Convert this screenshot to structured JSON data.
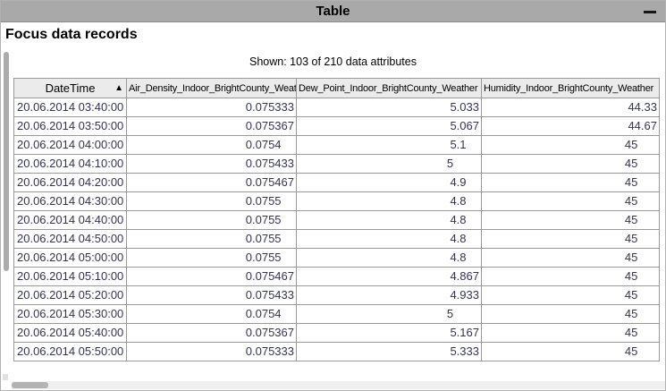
{
  "window": {
    "title": "Table"
  },
  "page": {
    "heading": "Focus data records",
    "status": "Shown: 103 of 210 data attributes"
  },
  "icons": {
    "sort_ascending": "▲",
    "minimize": "—"
  },
  "colors": {
    "titlebar_bg": "#a9a9a9",
    "header_bg": "#ebebeb",
    "grid_border": "#9a9a9a",
    "cell_text": "#333355",
    "scroll_thumb": "#b0b0b0",
    "scroll_track": "#f0f0f0"
  },
  "table": {
    "columns": [
      {
        "id": "datetime",
        "label": "DateTime",
        "sorted": "ascending"
      },
      {
        "id": "air_density",
        "label": "Air_Density_Indoor_BrightCounty_Weather"
      },
      {
        "id": "dew_point",
        "label": "Dew_Point_Indoor_BrightCounty_Weather"
      },
      {
        "id": "humidity",
        "label": "Humidity_Indoor_BrightCounty_Weather"
      }
    ],
    "rows": [
      {
        "datetime": "20.06.2014 03:40:00",
        "air_density": "0.075333",
        "dew_point": "5.033",
        "humidity": "44.33"
      },
      {
        "datetime": "20.06.2014 03:50:00",
        "air_density": "0.075367",
        "dew_point": "5.067",
        "humidity": "44.67"
      },
      {
        "datetime": "20.06.2014 04:00:00",
        "air_density": "0.0754",
        "dew_point": "5.1",
        "humidity": "45"
      },
      {
        "datetime": "20.06.2014 04:10:00",
        "air_density": "0.075433",
        "dew_point": "5",
        "humidity": "45"
      },
      {
        "datetime": "20.06.2014 04:20:00",
        "air_density": "0.075467",
        "dew_point": "4.9",
        "humidity": "45"
      },
      {
        "datetime": "20.06.2014 04:30:00",
        "air_density": "0.0755",
        "dew_point": "4.8",
        "humidity": "45"
      },
      {
        "datetime": "20.06.2014 04:40:00",
        "air_density": "0.0755",
        "dew_point": "4.8",
        "humidity": "45"
      },
      {
        "datetime": "20.06.2014 04:50:00",
        "air_density": "0.0755",
        "dew_point": "4.8",
        "humidity": "45"
      },
      {
        "datetime": "20.06.2014 05:00:00",
        "air_density": "0.0755",
        "dew_point": "4.8",
        "humidity": "45"
      },
      {
        "datetime": "20.06.2014 05:10:00",
        "air_density": "0.075467",
        "dew_point": "4.867",
        "humidity": "45"
      },
      {
        "datetime": "20.06.2014 05:20:00",
        "air_density": "0.075433",
        "dew_point": "4.933",
        "humidity": "45"
      },
      {
        "datetime": "20.06.2014 05:30:00",
        "air_density": "0.0754",
        "dew_point": "5",
        "humidity": "45"
      },
      {
        "datetime": "20.06.2014 05:40:00",
        "air_density": "0.075367",
        "dew_point": "5.167",
        "humidity": "45"
      },
      {
        "datetime": "20.06.2014 05:50:00",
        "air_density": "0.075333",
        "dew_point": "5.333",
        "humidity": "45"
      }
    ]
  }
}
